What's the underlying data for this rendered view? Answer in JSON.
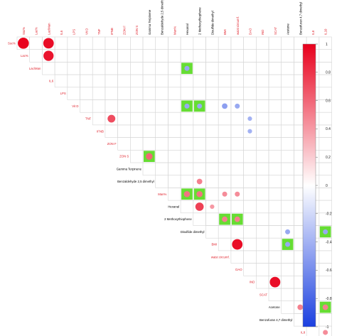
{
  "chart_data": {
    "type": "heatmap",
    "variables": [
      {
        "label": "Ssc%",
        "color": "#e0202a"
      },
      {
        "label": "Lac%",
        "color": "#e0202a"
      },
      {
        "label": "Lac/Man",
        "color": "#e0202a"
      },
      {
        "label": "IL6",
        "color": "#e0202a"
      },
      {
        "label": "LPS",
        "color": "#e0202a"
      },
      {
        "label": "Vit D",
        "color": "#e0202a"
      },
      {
        "label": "TNF",
        "color": "#e0202a"
      },
      {
        "label": "IFNB",
        "color": "#e0202a"
      },
      {
        "label": "ZON F",
        "color": "#e0202a"
      },
      {
        "label": "ZON S",
        "color": "#e0202a"
      },
      {
        "label": "Gamma Terpinene",
        "color": "#000000"
      },
      {
        "label": "Benzaldehyde 2,5 dimethyl",
        "color": "#000000"
      },
      {
        "label": "Man%",
        "color": "#e0202a"
      },
      {
        "label": "Hexanal",
        "color": "#000000"
      },
      {
        "label": "2 Methoxythiophene",
        "color": "#000000"
      },
      {
        "label": "Disulfide dimethyl",
        "color": "#000000"
      },
      {
        "label": "BMI",
        "color": "#e0202a"
      },
      {
        "label": "waist circumf.",
        "color": "#e0202a"
      },
      {
        "label": "DAO",
        "color": "#e0202a"
      },
      {
        "label": "IND",
        "color": "#e0202a"
      },
      {
        "label": "SCAT",
        "color": "#e0202a"
      },
      {
        "label": "Acetone",
        "color": "#000000"
      },
      {
        "label": "Benzofuran 4,7 dimethyl",
        "color": "#000000"
      },
      {
        "label": "IL8",
        "color": "#e0202a"
      },
      {
        "label": "IL10",
        "color": "#e0202a"
      }
    ],
    "cells": [
      {
        "row": "Ssc%",
        "col": "Ssc%",
        "r": 1.0,
        "highlight": false
      },
      {
        "row": "Ssc%",
        "col": "Lac/Man",
        "r": 0.95,
        "highlight": false
      },
      {
        "row": "Lac%",
        "col": "Lac/Man",
        "r": 0.92,
        "highlight": false
      },
      {
        "row": "Lac/Man",
        "col": "Hexanal",
        "r": -0.45,
        "highlight": true
      },
      {
        "row": "Vit D",
        "col": "Hexanal",
        "r": -0.45,
        "highlight": true
      },
      {
        "row": "Vit D",
        "col": "2 Methoxythiophene",
        "r": -0.45,
        "highlight": true
      },
      {
        "row": "Vit D",
        "col": "BMI",
        "r": -0.5,
        "highlight": false
      },
      {
        "row": "Vit D",
        "col": "waist circumf.",
        "r": -0.45,
        "highlight": false
      },
      {
        "row": "TNF",
        "col": "IFNB",
        "r": 0.7,
        "highlight": false
      },
      {
        "row": "TNF",
        "col": "DAO",
        "r": -0.4,
        "highlight": false
      },
      {
        "row": "IFNB",
        "col": "DAO",
        "r": -0.4,
        "highlight": false
      },
      {
        "row": "ZON S",
        "col": "Gamma Terpinene",
        "r": 0.6,
        "highlight": true
      },
      {
        "row": "Benzaldehyde 2,5 dimethyl",
        "col": "2 Methoxythiophene",
        "r": 0.5,
        "highlight": false
      },
      {
        "row": "Man%",
        "col": "Hexanal",
        "r": 0.55,
        "highlight": true
      },
      {
        "row": "Man%",
        "col": "2 Methoxythiophene",
        "r": 0.55,
        "highlight": true
      },
      {
        "row": "Man%",
        "col": "BMI",
        "r": 0.45,
        "highlight": false
      },
      {
        "row": "Man%",
        "col": "waist circumf.",
        "r": 0.45,
        "highlight": false
      },
      {
        "row": "Hexanal",
        "col": "2 Methoxythiophene",
        "r": 0.75,
        "highlight": false
      },
      {
        "row": "Hexanal",
        "col": "Disulfide dimethyl",
        "r": 0.4,
        "highlight": false
      },
      {
        "row": "2 Methoxythiophene",
        "col": "BMI",
        "r": 0.5,
        "highlight": true
      },
      {
        "row": "2 Methoxythiophene",
        "col": "waist circumf.",
        "r": 0.5,
        "highlight": true
      },
      {
        "row": "Disulfide dimethyl",
        "col": "Acetone",
        "r": -0.45,
        "highlight": false
      },
      {
        "row": "Disulfide dimethyl",
        "col": "IL10",
        "r": -0.45,
        "highlight": true
      },
      {
        "row": "BMI",
        "col": "waist circumf.",
        "r": 0.95,
        "highlight": false
      },
      {
        "row": "BMI",
        "col": "Acetone",
        "r": -0.45,
        "highlight": true
      },
      {
        "row": "IND",
        "col": "SCAT",
        "r": 0.95,
        "highlight": false
      },
      {
        "row": "Acetone",
        "col": "Benzofuran 4,7 dimethyl",
        "r": 0.5,
        "highlight": false
      },
      {
        "row": "Acetone",
        "col": "IL10",
        "r": 0.5,
        "highlight": true
      },
      {
        "row": "IL8",
        "col": "IL10",
        "r": 0.45,
        "highlight": false
      }
    ],
    "colorbar": {
      "range": [
        -1,
        1
      ],
      "ticks": [
        "1",
        "0.8",
        "0.6",
        "0.4",
        "0.2",
        "0",
        "-0.2",
        "-0.4",
        "-0.6",
        "-0.8",
        "-1"
      ],
      "high_color": "#e8001c",
      "mid_color": "#ffffff",
      "low_color": "#1a3fe0"
    },
    "highlight_color": "#66dd33",
    "grid": true
  }
}
